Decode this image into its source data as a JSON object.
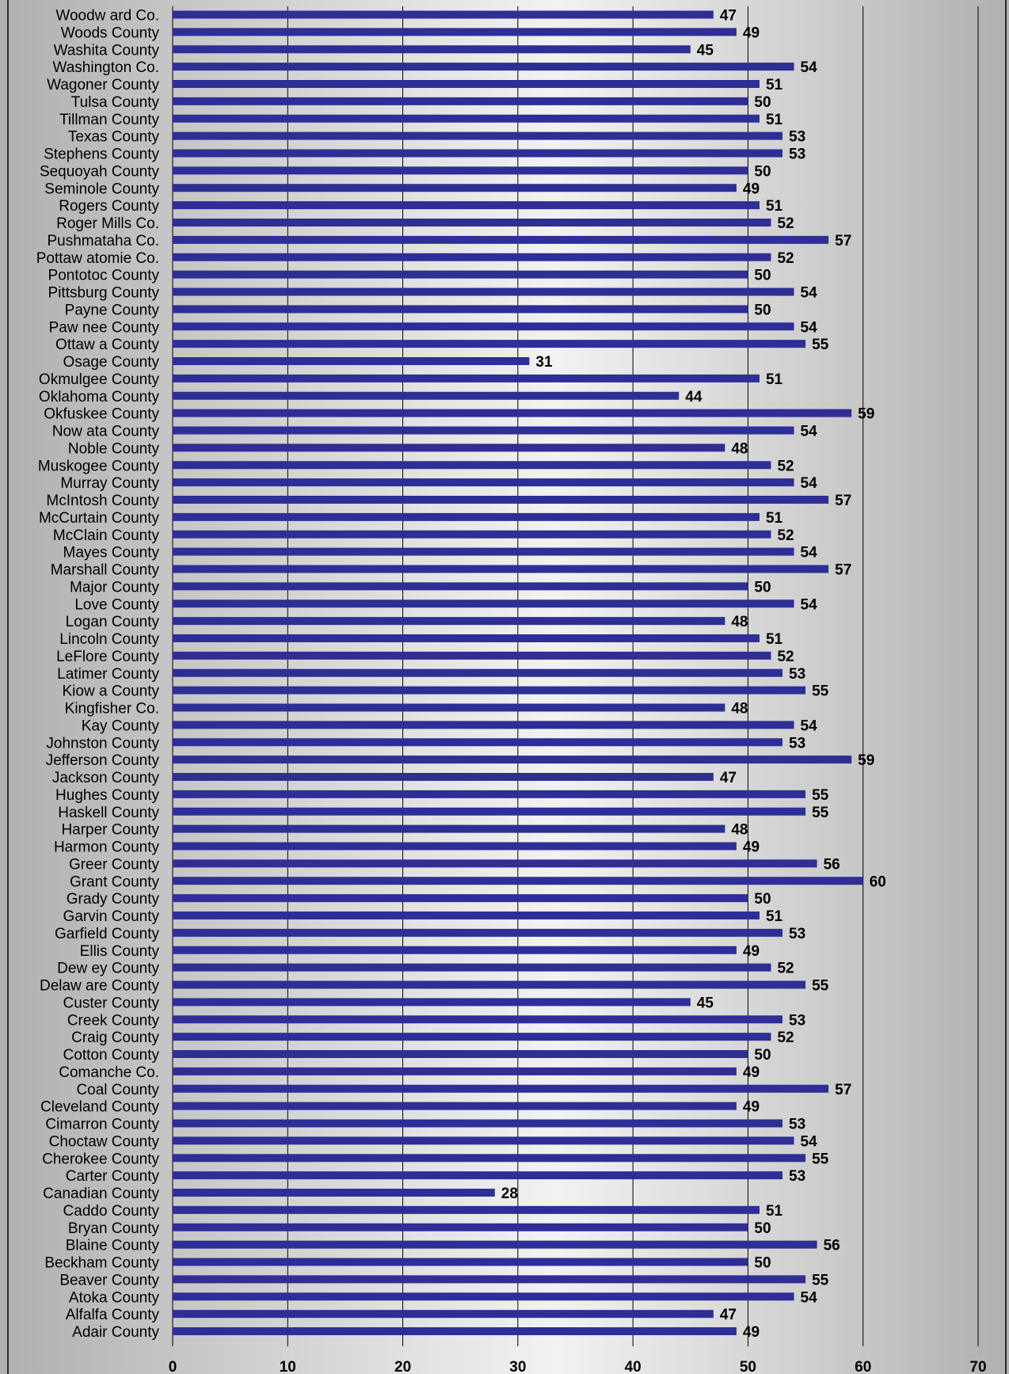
{
  "chart_data": {
    "type": "bar",
    "orientation": "horizontal",
    "categories": [
      "Woodw ard Co.",
      "Woods County",
      "Washita County",
      "Washington Co.",
      "Wagoner County",
      "Tulsa County",
      "Tillman County",
      "Texas County",
      "Stephens County",
      "Sequoyah County",
      "Seminole County",
      "Rogers County",
      "Roger Mills Co.",
      "Pushmataha Co.",
      "Pottaw atomie Co.",
      "Pontotoc County",
      "Pittsburg County",
      "Payne County",
      "Paw nee County",
      "Ottaw a County",
      "Osage County",
      "Okmulgee County",
      "Oklahoma County",
      "Okfuskee County",
      "Now ata County",
      "Noble County",
      "Muskogee County",
      "Murray County",
      "McIntosh County",
      "McCurtain County",
      "McClain County",
      "Mayes County",
      "Marshall County",
      "Major County",
      "Love County",
      "Logan County",
      "Lincoln County",
      "LeFlore County",
      "Latimer County",
      "Kiow a County",
      "Kingfisher Co.",
      "Kay County",
      "Johnston County",
      "Jefferson County",
      "Jackson County",
      "Hughes County",
      "Haskell County",
      "Harper County",
      "Harmon County",
      "Greer County",
      "Grant County",
      "Grady County",
      "Garvin County",
      "Garfield County",
      "Ellis County",
      "Dew ey County",
      "Delaw are County",
      "Custer County",
      "Creek County",
      "Craig County",
      "Cotton County",
      "Comanche Co.",
      "Coal County",
      "Cleveland County",
      "Cimarron County",
      "Choctaw County",
      "Cherokee County",
      "Carter County",
      "Canadian County",
      "Caddo County",
      "Bryan County",
      "Blaine County",
      "Beckham County",
      "Beaver County",
      "Atoka County",
      "Alfalfa County",
      "Adair County"
    ],
    "values": [
      47,
      49,
      45,
      54,
      51,
      50,
      51,
      53,
      53,
      50,
      49,
      51,
      52,
      57,
      52,
      50,
      54,
      50,
      54,
      55,
      31,
      51,
      44,
      59,
      54,
      48,
      52,
      54,
      57,
      51,
      52,
      54,
      57,
      50,
      54,
      48,
      51,
      52,
      53,
      55,
      48,
      54,
      53,
      59,
      47,
      55,
      55,
      48,
      49,
      56,
      60,
      50,
      51,
      53,
      49,
      52,
      55,
      45,
      53,
      52,
      50,
      49,
      57,
      49,
      53,
      54,
      55,
      53,
      28,
      51,
      50,
      56,
      50,
      55,
      54,
      47,
      49
    ],
    "xlim": [
      0,
      70
    ],
    "xticks": [
      "0",
      "10",
      "20",
      "30",
      "40",
      "50",
      "60",
      "70"
    ],
    "grid": "vertical",
    "colors": {
      "bar": "#2e2e96",
      "grid": "#000000",
      "text": "#000000"
    }
  }
}
